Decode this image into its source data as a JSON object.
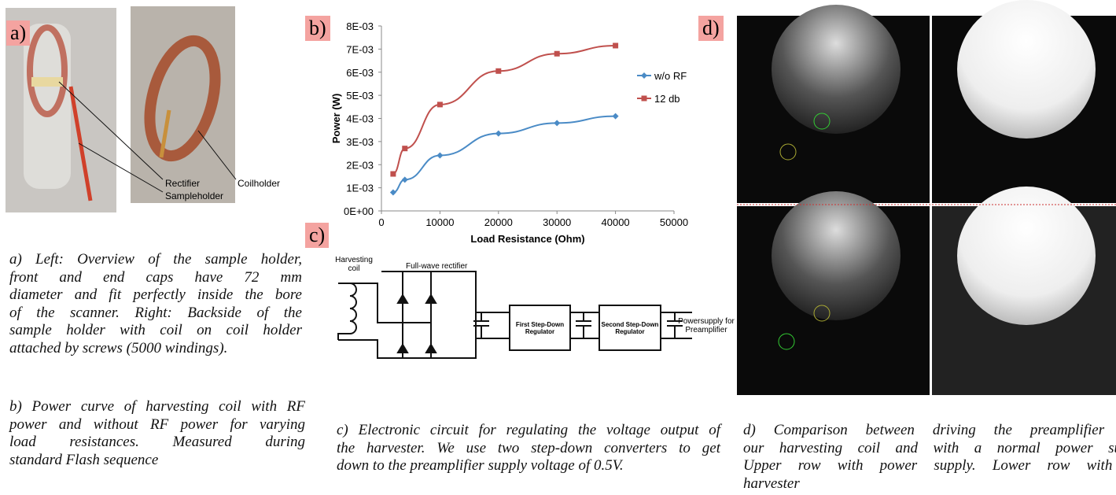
{
  "panel_labels": [
    "a)",
    "b)",
    "c)",
    "d)"
  ],
  "photo_labels": [
    "Rectifier",
    "Sampleholder",
    "Coilholder"
  ],
  "chart_data": {
    "type": "line",
    "x_label": "Load Resistance (Ohm)",
    "y_label": "Power (W)",
    "series": [
      {
        "name": "w/o RF",
        "color": "#4a8bc6",
        "marker": "diamond",
        "x": [
          2000,
          4000,
          10000,
          20000,
          30000,
          40000
        ],
        "values": [
          0.0008,
          0.00135,
          0.0024,
          0.00335,
          0.0038,
          0.0041
        ]
      },
      {
        "name": "12 db",
        "color": "#c0504d",
        "marker": "square",
        "x": [
          2000,
          4000,
          10000,
          20000,
          30000,
          40000
        ],
        "values": [
          0.0016,
          0.0027,
          0.0046,
          0.00605,
          0.0068,
          0.00715
        ]
      }
    ],
    "xlim": [
      0,
      50000
    ],
    "xticks": [
      0,
      10000,
      20000,
      30000,
      40000,
      50000
    ],
    "ylim": [
      0,
      0.008
    ],
    "yticks": [
      {
        "value": 0,
        "label": "0E+00"
      },
      {
        "value": 0.001,
        "label": "1E-03"
      },
      {
        "value": 0.002,
        "label": "2E-03"
      },
      {
        "value": 0.003,
        "label": "3E-03"
      },
      {
        "value": 0.004,
        "label": "4E-03"
      },
      {
        "value": 0.005,
        "label": "5E-03"
      },
      {
        "value": 0.006,
        "label": "6E-03"
      },
      {
        "value": 0.007,
        "label": "7E-03"
      },
      {
        "value": 0.008,
        "label": "8E-03"
      }
    ],
    "grid": false,
    "legend": "right"
  },
  "circuit": {
    "labels": [
      "Harvesting coil",
      "Full-wave rectifier",
      "First Step-Down Regulator",
      "Second Step-Down Regulator",
      "Powersupply for Preamplifier"
    ]
  },
  "captions": {
    "a": [
      "a) Left: Overview of the sample holder,",
      "front and end caps have 72 mm",
      "diameter and fit perfectly inside the bore",
      "of the scanner. Right: Backside of the",
      "sample holder with coil on coil holder",
      "attached by screws (5000 windings)."
    ],
    "b": [
      "b) Power curve of harvesting coil with RF",
      "power and without RF power for varying",
      "load resistances. Measured during",
      "standard Flash sequence"
    ],
    "c": [
      "c) Electronic circuit for regulating the voltage output of",
      "the harvester. We use two step-down converters to get",
      "down to the preamplifier supply voltage of 0.5V."
    ],
    "d": [
      "d) Comparison between driving the preamplifier wi",
      "our harvesting coil and with a normal power supp",
      "Upper row with power supply. Lower row with o",
      "harvester"
    ]
  }
}
